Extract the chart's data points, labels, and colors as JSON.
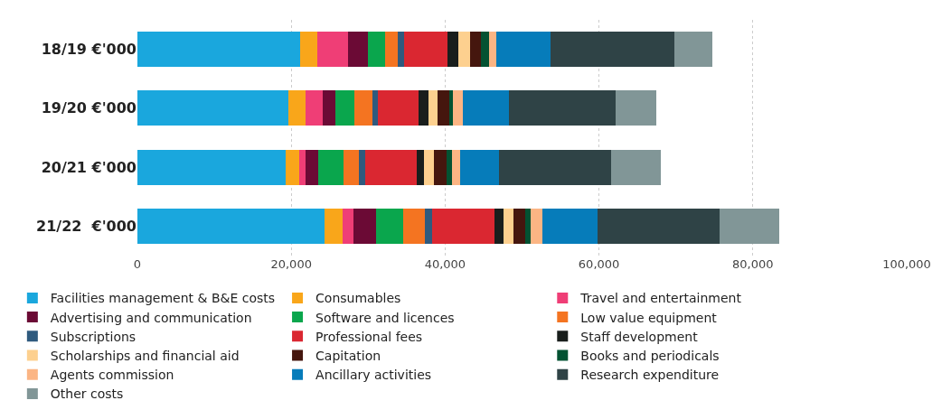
{
  "chart_data": {
    "type": "bar",
    "orientation": "horizontal",
    "stacked": true,
    "categories": [
      "18/19 €'000",
      "19/20 €'000",
      "20/21 €'000",
      "21/22  €'000"
    ],
    "series": [
      {
        "name": "Facilities management & B&E costs",
        "color": "#1aa7dd",
        "values": [
          21150,
          19620,
          19230,
          24320
        ]
      },
      {
        "name": "Consumables",
        "color": "#f9a61a",
        "values": [
          2230,
          2240,
          1760,
          2350
        ]
      },
      {
        "name": "Travel and entertainment",
        "color": "#ef3e76",
        "values": [
          4000,
          2230,
          870,
          1410
        ]
      },
      {
        "name": "Advertising and communication",
        "color": "#6b0a35",
        "values": [
          2580,
          1640,
          1600,
          2940
        ]
      },
      {
        "name": "Software and licences",
        "color": "#0aa64d",
        "values": [
          2240,
          2510,
          3290,
          3530
        ]
      },
      {
        "name": "Low value equipment",
        "color": "#f47421",
        "values": [
          1680,
          2310,
          2040,
          2820
        ]
      },
      {
        "name": "Subscriptions",
        "color": "#2f5a7e",
        "values": [
          740,
          710,
          810,
          930
        ]
      },
      {
        "name": "Professional fees",
        "color": "#da2731",
        "values": [
          5680,
          5290,
          6670,
          8100
        ]
      },
      {
        "name": "Staff development",
        "color": "#191e1c",
        "values": [
          1400,
          1290,
          1030,
          1150
        ]
      },
      {
        "name": "Scholarships and financial aid",
        "color": "#fdd08f",
        "values": [
          1500,
          1160,
          1300,
          1330
        ]
      },
      {
        "name": "Capitation",
        "color": "#45160e",
        "values": [
          1500,
          1540,
          1600,
          1570
        ]
      },
      {
        "name": "Books and periodicals",
        "color": "#035232",
        "values": [
          1000,
          460,
          650,
          650
        ]
      },
      {
        "name": "Agents commission",
        "color": "#fbb584",
        "values": [
          950,
          1300,
          1100,
          1540
        ]
      },
      {
        "name": "Ancillary activities",
        "color": "#067cba",
        "values": [
          7050,
          6000,
          5050,
          7160
        ]
      },
      {
        "name": "Research expenditure",
        "color": "#2f4346",
        "values": [
          16100,
          13860,
          14570,
          15900
        ]
      },
      {
        "name": "Other costs",
        "color": "#819697",
        "values": [
          4900,
          5340,
          6430,
          7700
        ]
      }
    ],
    "xlim": [
      0,
      100000
    ],
    "xticks": [
      {
        "value": 0,
        "label": "0"
      },
      {
        "value": 20000,
        "label": "20,000"
      },
      {
        "value": 40000,
        "label": "40,000"
      },
      {
        "value": 60000,
        "label": "60,000"
      },
      {
        "value": 80000,
        "label": "80,000"
      },
      {
        "value": 100000,
        "label": "100,000"
      }
    ],
    "grid": "x",
    "legend": "bottom"
  }
}
